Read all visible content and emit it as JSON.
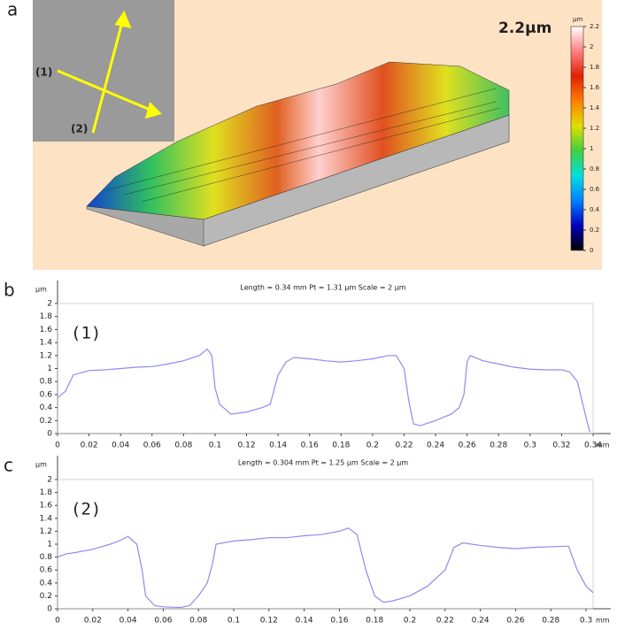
{
  "chart_data": [
    {
      "type": "surface",
      "panel": "a",
      "annotation": "2.2µm",
      "markers": [
        "(1)",
        "(2)"
      ],
      "unit": "µm",
      "clim": [
        0,
        2.2
      ],
      "cticks": [
        0,
        0.2,
        0.4,
        0.6,
        0.8,
        1,
        1.2,
        1.4,
        1.6,
        1.8,
        2,
        2.2
      ],
      "colors": [
        "#000000",
        "#0000c0",
        "#0080ff",
        "#00e0e0",
        "#40d040",
        "#e0e000",
        "#ff8000",
        "#e02000",
        "#ff8080",
        "#ffffff"
      ]
    },
    {
      "type": "line",
      "panel": "b",
      "annotation": "(1)",
      "title": "Length = 0.34 mm  Pt = 1.31 µm  Scale = 2 µm",
      "y_unit": "µm",
      "x_unit": "mm",
      "color": "#8c8cf0",
      "xlim": [
        0,
        0.34
      ],
      "ylim": [
        0,
        2
      ],
      "xticks": [
        0,
        0.02,
        0.04,
        0.06,
        0.08,
        0.1,
        0.12,
        0.14,
        0.16,
        0.18,
        0.2,
        0.22,
        0.24,
        0.26,
        0.28,
        0.3,
        0.32,
        0.34
      ],
      "yticks": [
        0,
        0.2,
        0.4,
        0.6,
        0.8,
        1,
        1.2,
        1.4,
        1.6,
        1.8,
        2
      ],
      "x": [
        0,
        0.005,
        0.01,
        0.02,
        0.03,
        0.04,
        0.05,
        0.06,
        0.07,
        0.08,
        0.09,
        0.095,
        0.098,
        0.1,
        0.103,
        0.11,
        0.12,
        0.13,
        0.135,
        0.14,
        0.145,
        0.15,
        0.16,
        0.17,
        0.18,
        0.19,
        0.2,
        0.21,
        0.215,
        0.22,
        0.223,
        0.226,
        0.23,
        0.24,
        0.25,
        0.255,
        0.258,
        0.26,
        0.262,
        0.27,
        0.28,
        0.29,
        0.3,
        0.31,
        0.32,
        0.325,
        0.33,
        0.333,
        0.336,
        0.338
      ],
      "values": [
        0.55,
        0.65,
        0.9,
        0.97,
        0.98,
        1.0,
        1.02,
        1.03,
        1.07,
        1.12,
        1.2,
        1.3,
        1.2,
        0.7,
        0.45,
        0.3,
        0.33,
        0.4,
        0.45,
        0.9,
        1.1,
        1.17,
        1.15,
        1.12,
        1.1,
        1.12,
        1.15,
        1.2,
        1.2,
        1.0,
        0.5,
        0.15,
        0.12,
        0.2,
        0.3,
        0.4,
        0.6,
        1.1,
        1.2,
        1.12,
        1.07,
        1.02,
        0.99,
        0.98,
        0.98,
        0.95,
        0.8,
        0.5,
        0.2,
        0.02
      ]
    },
    {
      "type": "line",
      "panel": "c",
      "annotation": "(2)",
      "title": "Length = 0.304 mm  Pt = 1.25 µm  Scale = 2 µm",
      "y_unit": "µm",
      "x_unit": "mm",
      "color": "#8c8cf0",
      "xlim": [
        0,
        0.304
      ],
      "ylim": [
        0,
        2
      ],
      "xticks": [
        0,
        0.02,
        0.04,
        0.06,
        0.08,
        0.1,
        0.12,
        0.14,
        0.16,
        0.18,
        0.2,
        0.22,
        0.24,
        0.26,
        0.28,
        0.3
      ],
      "yticks": [
        0,
        0.2,
        0.4,
        0.6,
        0.8,
        1,
        1.2,
        1.4,
        1.6,
        1.8,
        2
      ],
      "x": [
        0,
        0.005,
        0.01,
        0.02,
        0.03,
        0.035,
        0.04,
        0.045,
        0.048,
        0.05,
        0.055,
        0.06,
        0.07,
        0.075,
        0.08,
        0.085,
        0.088,
        0.09,
        0.1,
        0.11,
        0.12,
        0.13,
        0.14,
        0.15,
        0.16,
        0.165,
        0.17,
        0.175,
        0.18,
        0.185,
        0.19,
        0.2,
        0.21,
        0.22,
        0.225,
        0.23,
        0.24,
        0.25,
        0.26,
        0.27,
        0.28,
        0.29,
        0.295,
        0.3,
        0.304
      ],
      "values": [
        0.8,
        0.85,
        0.87,
        0.92,
        1.0,
        1.05,
        1.12,
        1.0,
        0.6,
        0.2,
        0.05,
        0.03,
        0.02,
        0.05,
        0.2,
        0.4,
        0.7,
        1.0,
        1.05,
        1.07,
        1.1,
        1.1,
        1.13,
        1.15,
        1.2,
        1.25,
        1.15,
        0.6,
        0.2,
        0.1,
        0.12,
        0.2,
        0.35,
        0.6,
        0.95,
        1.02,
        0.98,
        0.95,
        0.93,
        0.95,
        0.96,
        0.97,
        0.6,
        0.35,
        0.25
      ]
    }
  ]
}
